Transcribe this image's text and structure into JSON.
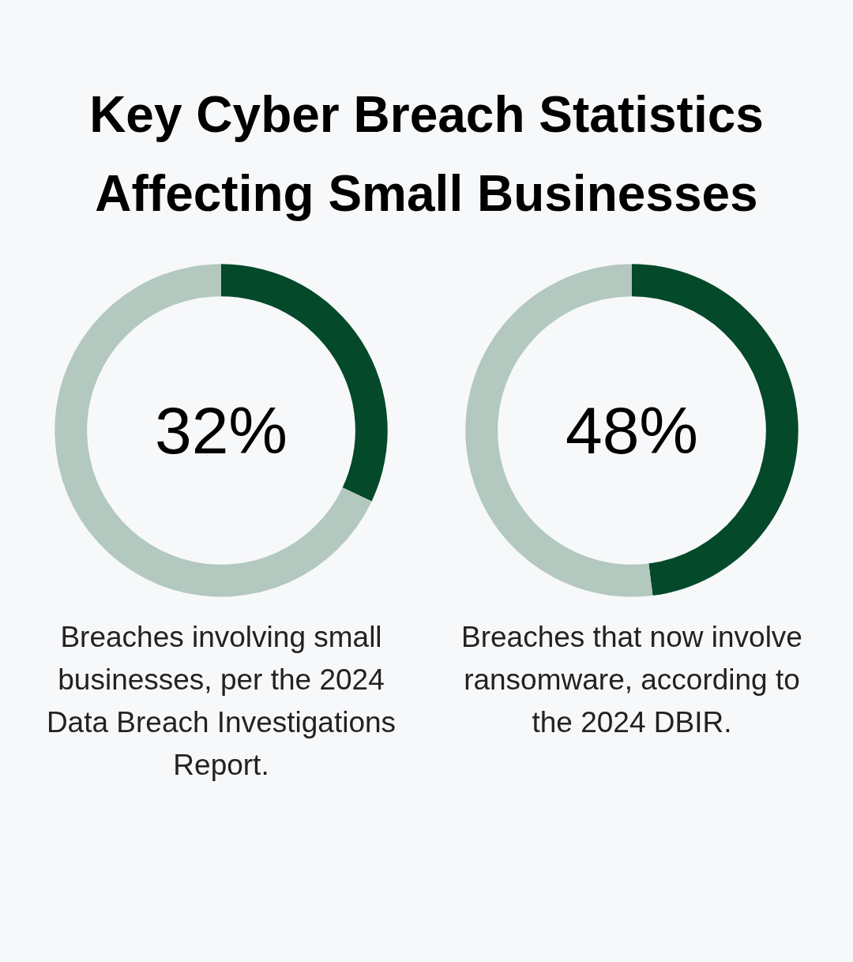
{
  "chart_data": [
    {
      "type": "donut",
      "title": "Key Cyber Breach Statistics Affecting Small Businesses",
      "categories": [
        null,
        null
      ],
      "values": [
        32,
        68
      ],
      "colors": [
        "#03492a",
        "#b3c8bf"
      ],
      "annotations": [
        "32%",
        "Breaches involving small businesses, per the 2024 Data Breach Investigations Report."
      ]
    },
    {
      "type": "donut",
      "categories": [
        null,
        null
      ],
      "values": [
        48,
        52
      ],
      "colors": [
        "#03492a",
        "#b3c8bf"
      ],
      "annotations": [
        "48%",
        "Breaches that now involve ransomware, according to the 2024 DBIR."
      ]
    }
  ]
}
